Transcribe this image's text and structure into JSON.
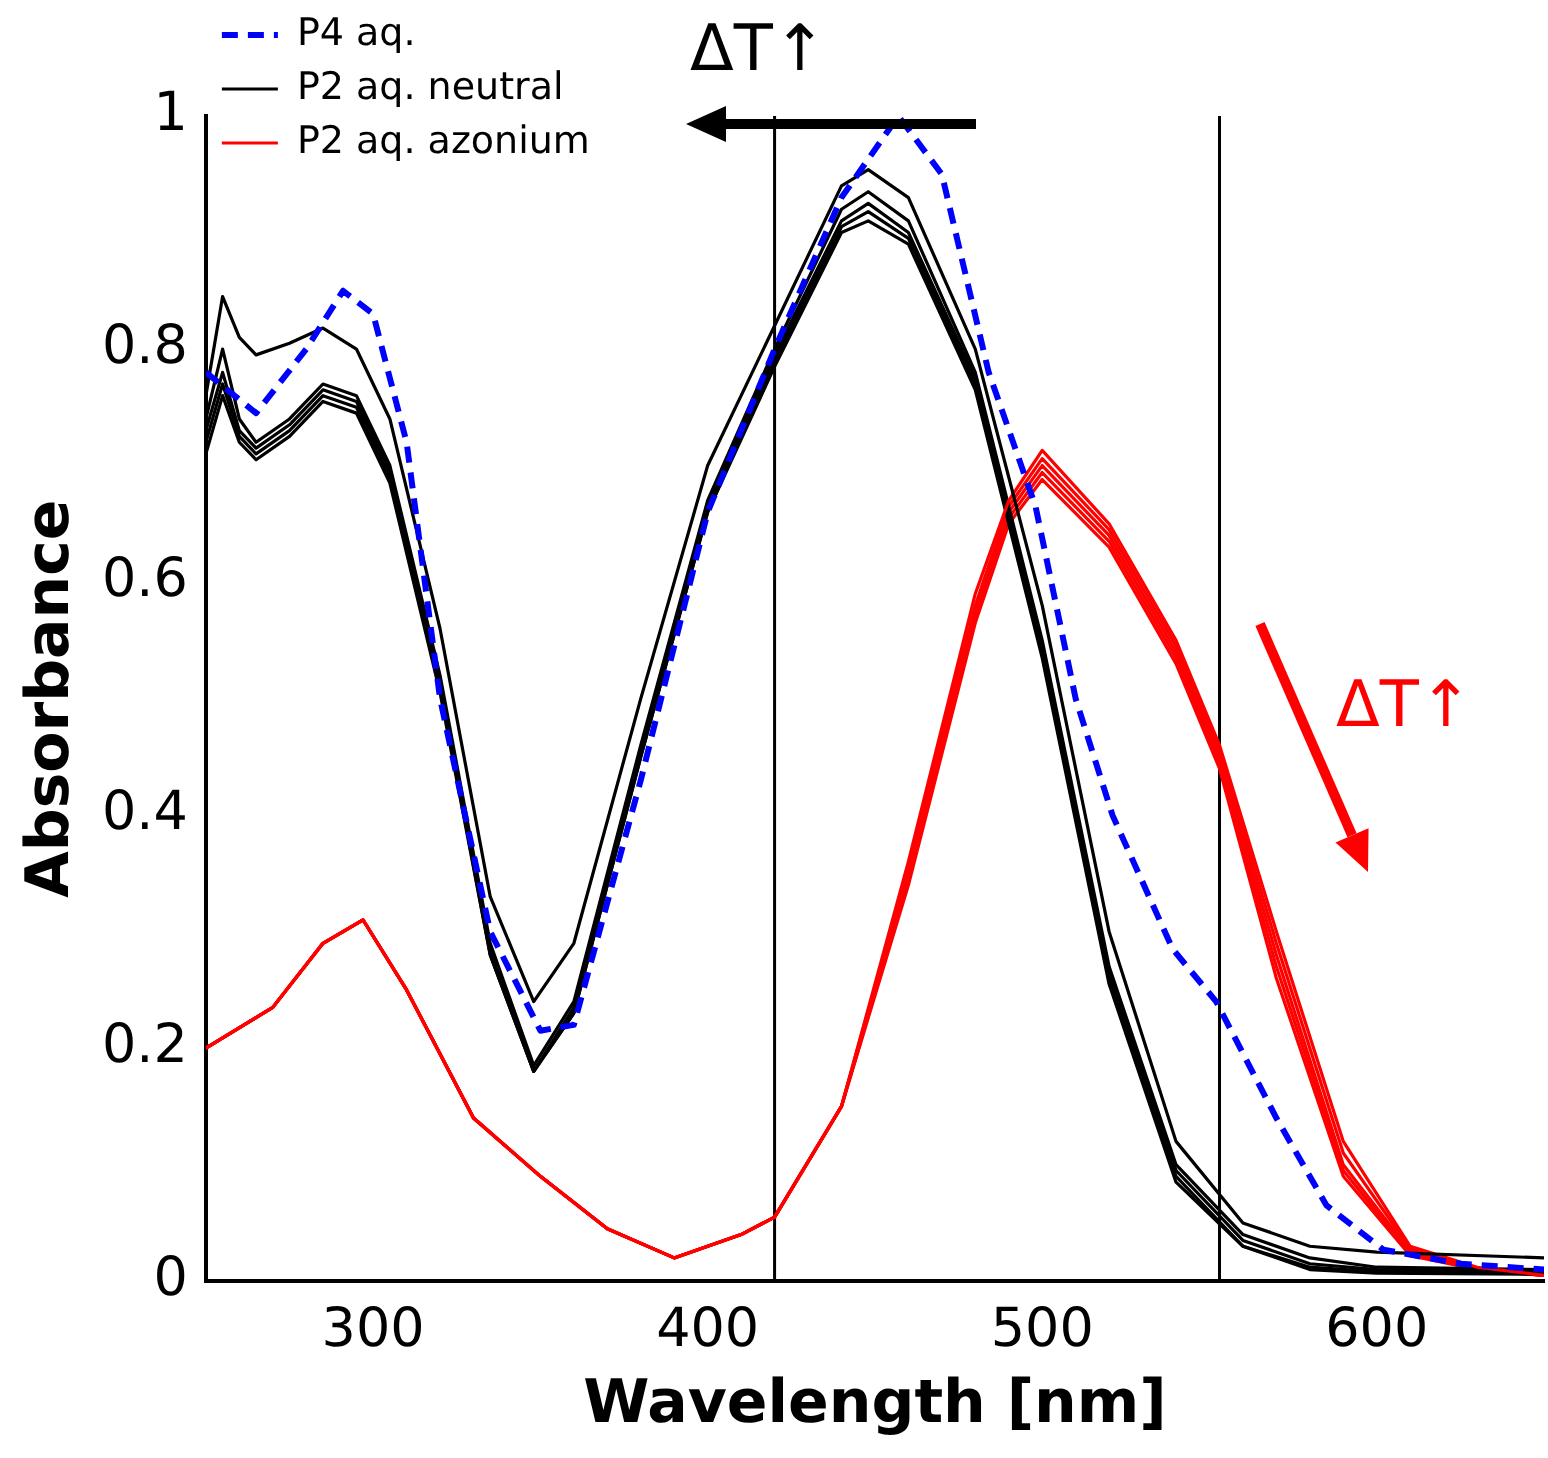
{
  "chart_data": {
    "type": "line",
    "xlabel": "Wavelength [nm]",
    "ylabel": "Absorbance",
    "xlim": [
      250,
      650
    ],
    "xticks": [
      300,
      400,
      500,
      600
    ],
    "ylim": [
      0,
      1
    ],
    "yticks": [
      0,
      0.2,
      0.4,
      0.6,
      0.8,
      1
    ],
    "grid": false,
    "legend": "top left",
    "marker": "none",
    "annotations": [
      "ΔT↑",
      "ΔT↑"
    ],
    "ref_lines": [
      {
        "axis": "x",
        "value": 420,
        "color": "#000000"
      },
      {
        "axis": "x",
        "value": 553,
        "color": "#000000"
      }
    ],
    "series": [
      {
        "name": "P4 aq.",
        "color": "#0000ff",
        "line_style": "dashed",
        "x": [
          250,
          265,
          280,
          291,
          300,
          310,
          320,
          335,
          350,
          360,
          380,
          400,
          420,
          440,
          457,
          470,
          484,
          498,
          510,
          521,
          539,
          552,
          570,
          585,
          602,
          625,
          650
        ],
        "values": [
          0.78,
          0.745,
          0.8,
          0.85,
          0.83,
          0.72,
          0.5,
          0.3,
          0.215,
          0.22,
          0.43,
          0.66,
          0.8,
          0.93,
          1.0,
          0.95,
          0.78,
          0.665,
          0.5,
          0.4,
          0.285,
          0.24,
          0.14,
          0.065,
          0.027,
          0.015,
          0.01
        ]
      },
      {
        "name": "P2 aq. neutral",
        "color": "#000000",
        "line_style": "solid",
        "x": [
          250,
          255,
          260,
          265,
          275,
          285,
          295,
          305,
          320,
          335,
          348,
          360,
          380,
          400,
          420,
          440,
          448,
          460,
          480,
          500,
          520,
          540,
          560,
          580,
          600,
          650
        ],
        "values": [
          0.76,
          0.845,
          0.81,
          0.795,
          0.805,
          0.818,
          0.8,
          0.74,
          0.56,
          0.33,
          0.24,
          0.29,
          0.5,
          0.7,
          0.82,
          0.94,
          0.954,
          0.93,
          0.8,
          0.58,
          0.3,
          0.12,
          0.05,
          0.03,
          0.025,
          0.02
        ]
      },
      {
        "color": "#000000",
        "line_style": "solid",
        "x": [
          250,
          255,
          260,
          265,
          275,
          285,
          295,
          305,
          320,
          335,
          348,
          360,
          380,
          400,
          420,
          440,
          448,
          460,
          480,
          500,
          520,
          540,
          560,
          580,
          600,
          650
        ],
        "values": [
          0.74,
          0.8,
          0.74,
          0.72,
          0.74,
          0.77,
          0.76,
          0.7,
          0.52,
          0.29,
          0.185,
          0.24,
          0.46,
          0.67,
          0.8,
          0.92,
          0.935,
          0.91,
          0.78,
          0.55,
          0.27,
          0.1,
          0.04,
          0.02,
          0.012,
          0.01
        ]
      },
      {
        "color": "#000000",
        "line_style": "solid",
        "x": [
          250,
          255,
          260,
          265,
          275,
          285,
          295,
          305,
          320,
          335,
          348,
          360,
          380,
          400,
          420,
          440,
          448,
          460,
          480,
          500,
          520,
          540,
          560,
          580,
          600,
          650
        ],
        "values": [
          0.73,
          0.78,
          0.73,
          0.715,
          0.735,
          0.765,
          0.755,
          0.695,
          0.515,
          0.285,
          0.18,
          0.235,
          0.455,
          0.665,
          0.795,
          0.91,
          0.925,
          0.9,
          0.775,
          0.545,
          0.265,
          0.095,
          0.035,
          0.015,
          0.01,
          0.008
        ]
      },
      {
        "color": "#000000",
        "line_style": "solid",
        "x": [
          250,
          255,
          260,
          265,
          275,
          285,
          295,
          305,
          320,
          335,
          348,
          360,
          380,
          400,
          420,
          440,
          448,
          460,
          480,
          500,
          520,
          540,
          560,
          580,
          600,
          650
        ],
        "values": [
          0.72,
          0.77,
          0.725,
          0.71,
          0.73,
          0.76,
          0.75,
          0.69,
          0.51,
          0.28,
          0.18,
          0.23,
          0.45,
          0.66,
          0.79,
          0.905,
          0.918,
          0.895,
          0.77,
          0.54,
          0.26,
          0.09,
          0.03,
          0.012,
          0.008,
          0.007
        ]
      },
      {
        "color": "#000000",
        "line_style": "solid",
        "x": [
          250,
          255,
          260,
          265,
          275,
          285,
          295,
          305,
          320,
          335,
          348,
          360,
          380,
          400,
          420,
          440,
          448,
          460,
          480,
          500,
          520,
          540,
          560,
          580,
          600,
          650
        ],
        "values": [
          0.71,
          0.76,
          0.72,
          0.705,
          0.725,
          0.755,
          0.745,
          0.685,
          0.505,
          0.28,
          0.18,
          0.23,
          0.45,
          0.66,
          0.785,
          0.9,
          0.91,
          0.89,
          0.765,
          0.535,
          0.255,
          0.085,
          0.03,
          0.01,
          0.007,
          0.006
        ]
      },
      {
        "name": "P2 aq. azonium",
        "color": "#ff0000",
        "line_style": "solid",
        "x": [
          250,
          270,
          285,
          297,
          310,
          330,
          350,
          370,
          390,
          410,
          420,
          440,
          460,
          480,
          490,
          500,
          520,
          540,
          553,
          570,
          590,
          610,
          630,
          650
        ],
        "values": [
          0.2,
          0.235,
          0.29,
          0.31,
          0.25,
          0.14,
          0.09,
          0.045,
          0.02,
          0.04,
          0.055,
          0.15,
          0.36,
          0.59,
          0.67,
          0.713,
          0.65,
          0.55,
          0.46,
          0.3,
          0.12,
          0.03,
          0.012,
          0.005
        ]
      },
      {
        "color": "#ff0000",
        "line_style": "solid",
        "x": [
          250,
          270,
          285,
          297,
          310,
          330,
          350,
          370,
          390,
          410,
          420,
          440,
          460,
          480,
          490,
          500,
          520,
          540,
          553,
          570,
          590,
          610,
          630,
          650
        ],
        "values": [
          0.2,
          0.235,
          0.29,
          0.31,
          0.25,
          0.14,
          0.09,
          0.045,
          0.02,
          0.04,
          0.055,
          0.15,
          0.355,
          0.58,
          0.665,
          0.706,
          0.645,
          0.545,
          0.455,
          0.29,
          0.11,
          0.028,
          0.011,
          0.005
        ]
      },
      {
        "color": "#ff0000",
        "line_style": "solid",
        "x": [
          250,
          270,
          285,
          297,
          310,
          330,
          350,
          370,
          390,
          410,
          420,
          440,
          460,
          480,
          490,
          500,
          520,
          540,
          553,
          570,
          590,
          610,
          630,
          650
        ],
        "values": [
          0.2,
          0.235,
          0.29,
          0.31,
          0.25,
          0.14,
          0.09,
          0.045,
          0.02,
          0.04,
          0.055,
          0.15,
          0.35,
          0.575,
          0.66,
          0.7,
          0.64,
          0.54,
          0.45,
          0.28,
          0.1,
          0.026,
          0.01,
          0.005
        ]
      },
      {
        "color": "#ff0000",
        "line_style": "solid",
        "x": [
          250,
          270,
          285,
          297,
          310,
          330,
          350,
          370,
          390,
          410,
          420,
          440,
          460,
          480,
          490,
          500,
          520,
          540,
          553,
          570,
          590,
          610,
          630,
          650
        ],
        "values": [
          0.2,
          0.235,
          0.29,
          0.31,
          0.25,
          0.14,
          0.09,
          0.045,
          0.02,
          0.04,
          0.055,
          0.15,
          0.345,
          0.57,
          0.655,
          0.694,
          0.635,
          0.535,
          0.445,
          0.27,
          0.095,
          0.024,
          0.01,
          0.005
        ]
      },
      {
        "color": "#ff0000",
        "line_style": "solid",
        "x": [
          250,
          270,
          285,
          297,
          310,
          330,
          350,
          370,
          390,
          410,
          420,
          440,
          460,
          480,
          490,
          500,
          520,
          540,
          553,
          570,
          590,
          610,
          630,
          650
        ],
        "values": [
          0.2,
          0.235,
          0.29,
          0.31,
          0.25,
          0.14,
          0.09,
          0.045,
          0.02,
          0.04,
          0.055,
          0.15,
          0.34,
          0.565,
          0.65,
          0.688,
          0.63,
          0.53,
          0.44,
          0.26,
          0.09,
          0.022,
          0.01,
          0.005
        ]
      }
    ]
  }
}
